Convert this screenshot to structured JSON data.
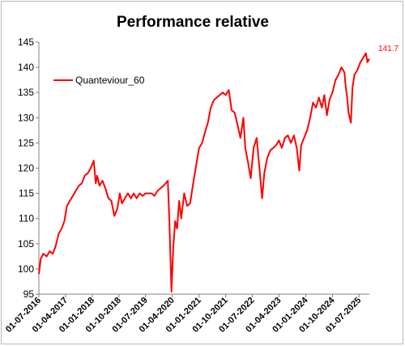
{
  "chart_data": {
    "type": "line",
    "title": "Performance relative",
    "xlabel": "",
    "ylabel": "",
    "ylim": [
      95,
      145
    ],
    "yticks": [
      95,
      100,
      105,
      110,
      115,
      120,
      125,
      130,
      135,
      140,
      145
    ],
    "xlim": [
      "2016-07-01",
      "2025-10-15"
    ],
    "x_tick_labels": [
      "01-07-2016",
      "01-04-2017",
      "01-01-2018",
      "01-10-2018",
      "01-07-2019",
      "01-04-2020",
      "01-01-2021",
      "01-10-2021",
      "01-07-2022",
      "01-04-2023",
      "01-01-2024",
      "01-10-2024",
      "01-07-2025"
    ],
    "x_tick_dates": [
      "2016-07-01",
      "2017-04-01",
      "2018-01-01",
      "2018-10-01",
      "2019-07-01",
      "2020-04-01",
      "2021-01-01",
      "2021-10-01",
      "2022-07-01",
      "2023-04-01",
      "2024-01-01",
      "2024-10-01",
      "2025-07-01"
    ],
    "grid": false,
    "legend": "top-left",
    "last_value_label": "141.7",
    "series": [
      {
        "name": "Quanteviour_60",
        "color": "#ff0000",
        "points": [
          [
            "2016-07-01",
            99.0
          ],
          [
            "2016-07-20",
            102.0
          ],
          [
            "2016-08-15",
            103.0
          ],
          [
            "2016-09-20",
            102.5
          ],
          [
            "2016-10-20",
            103.5
          ],
          [
            "2016-11-20",
            103.0
          ],
          [
            "2016-12-20",
            104.5
          ],
          [
            "2017-01-20",
            107.0
          ],
          [
            "2017-02-20",
            108.0
          ],
          [
            "2017-03-20",
            109.5
          ],
          [
            "2017-04-15",
            112.5
          ],
          [
            "2017-05-15",
            113.5
          ],
          [
            "2017-06-15",
            114.5
          ],
          [
            "2017-07-15",
            115.5
          ],
          [
            "2017-08-15",
            116.5
          ],
          [
            "2017-09-15",
            117.0
          ],
          [
            "2017-10-15",
            118.5
          ],
          [
            "2017-11-15",
            119.0
          ],
          [
            "2017-12-15",
            120.0
          ],
          [
            "2018-01-15",
            121.5
          ],
          [
            "2018-02-05",
            117.0
          ],
          [
            "2018-02-20",
            118.5
          ],
          [
            "2018-03-15",
            116.5
          ],
          [
            "2018-04-15",
            117.5
          ],
          [
            "2018-05-15",
            116.0
          ],
          [
            "2018-06-15",
            114.0
          ],
          [
            "2018-07-15",
            113.5
          ],
          [
            "2018-08-15",
            110.5
          ],
          [
            "2018-09-15",
            112.0
          ],
          [
            "2018-10-10",
            115.0
          ],
          [
            "2018-11-01",
            113.0
          ],
          [
            "2018-12-01",
            114.0
          ],
          [
            "2019-01-01",
            115.0
          ],
          [
            "2019-02-01",
            114.0
          ],
          [
            "2019-03-01",
            115.0
          ],
          [
            "2019-04-01",
            114.0
          ],
          [
            "2019-05-01",
            115.0
          ],
          [
            "2019-06-01",
            114.5
          ],
          [
            "2019-07-01",
            115.0
          ],
          [
            "2019-08-01",
            115.0
          ],
          [
            "2019-09-01",
            115.0
          ],
          [
            "2019-10-01",
            114.5
          ],
          [
            "2019-11-01",
            115.5
          ],
          [
            "2019-12-01",
            116.0
          ],
          [
            "2020-01-01",
            116.5
          ],
          [
            "2020-02-15",
            117.5
          ],
          [
            "2020-03-01",
            110.0
          ],
          [
            "2020-03-15",
            101.0
          ],
          [
            "2020-03-23",
            95.5
          ],
          [
            "2020-04-10",
            104.0
          ],
          [
            "2020-05-01",
            109.5
          ],
          [
            "2020-05-20",
            108.0
          ],
          [
            "2020-06-10",
            113.5
          ],
          [
            "2020-07-01",
            110.0
          ],
          [
            "2020-08-01",
            115.0
          ],
          [
            "2020-09-01",
            112.5
          ],
          [
            "2020-10-01",
            113.0
          ],
          [
            "2020-11-01",
            117.0
          ],
          [
            "2020-12-01",
            120.5
          ],
          [
            "2021-01-01",
            124.0
          ],
          [
            "2021-02-01",
            125.0
          ],
          [
            "2021-03-01",
            127.0
          ],
          [
            "2021-04-01",
            129.0
          ],
          [
            "2021-05-01",
            132.0
          ],
          [
            "2021-06-01",
            133.5
          ],
          [
            "2021-07-01",
            134.0
          ],
          [
            "2021-08-01",
            134.5
          ],
          [
            "2021-09-01",
            135.0
          ],
          [
            "2021-10-01",
            134.5
          ],
          [
            "2021-11-01",
            135.5
          ],
          [
            "2021-12-01",
            131.5
          ],
          [
            "2022-01-01",
            131.0
          ],
          [
            "2022-02-01",
            128.5
          ],
          [
            "2022-03-01",
            126.0
          ],
          [
            "2022-04-01",
            130.0
          ],
          [
            "2022-04-20",
            124.0
          ],
          [
            "2022-05-20",
            121.0
          ],
          [
            "2022-06-15",
            118.0
          ],
          [
            "2022-07-15",
            124.0
          ],
          [
            "2022-08-15",
            126.0
          ],
          [
            "2022-09-15",
            119.5
          ],
          [
            "2022-10-10",
            114.0
          ],
          [
            "2022-11-01",
            119.0
          ],
          [
            "2022-12-01",
            122.0
          ],
          [
            "2023-01-01",
            123.5
          ],
          [
            "2023-02-01",
            124.0
          ],
          [
            "2023-03-01",
            124.5
          ],
          [
            "2023-04-01",
            125.5
          ],
          [
            "2023-05-01",
            124.0
          ],
          [
            "2023-06-01",
            126.0
          ],
          [
            "2023-07-01",
            126.5
          ],
          [
            "2023-08-01",
            125.0
          ],
          [
            "2023-09-01",
            126.5
          ],
          [
            "2023-10-01",
            124.0
          ],
          [
            "2023-10-27",
            119.5
          ],
          [
            "2023-11-15",
            124.5
          ],
          [
            "2023-12-15",
            126.0
          ],
          [
            "2024-01-15",
            127.5
          ],
          [
            "2024-02-15",
            130.0
          ],
          [
            "2024-03-15",
            133.0
          ],
          [
            "2024-04-15",
            132.0
          ],
          [
            "2024-05-15",
            134.0
          ],
          [
            "2024-06-15",
            132.0
          ],
          [
            "2024-07-10",
            134.5
          ],
          [
            "2024-08-05",
            130.5
          ],
          [
            "2024-09-01",
            133.5
          ],
          [
            "2024-10-01",
            135.0
          ],
          [
            "2024-11-01",
            137.5
          ],
          [
            "2024-12-01",
            138.5
          ],
          [
            "2025-01-01",
            140.0
          ],
          [
            "2025-02-01",
            139.0
          ],
          [
            "2025-02-15",
            136.0
          ],
          [
            "2025-03-01",
            134.0
          ],
          [
            "2025-03-15",
            131.0
          ],
          [
            "2025-04-08",
            129.0
          ],
          [
            "2025-04-25",
            136.0
          ],
          [
            "2025-05-15",
            138.5
          ],
          [
            "2025-06-15",
            139.5
          ],
          [
            "2025-07-15",
            141.0
          ],
          [
            "2025-08-15",
            142.0
          ],
          [
            "2025-09-10",
            142.8
          ],
          [
            "2025-09-25",
            141.0
          ],
          [
            "2025-10-15",
            141.7
          ]
        ]
      }
    ]
  }
}
